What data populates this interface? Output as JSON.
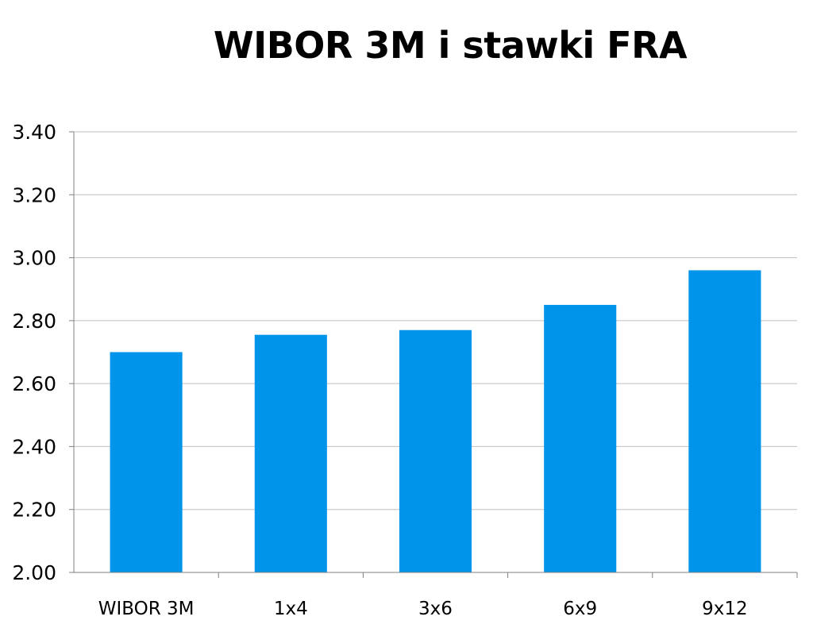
{
  "chart_data": {
    "type": "bar",
    "title": "WIBOR 3M i stawki FRA",
    "xlabel": "",
    "ylabel": "",
    "categories": [
      "WIBOR 3M",
      "1x4",
      "3x6",
      "6x9",
      "9x12"
    ],
    "values": [
      2.7,
      2.755,
      2.77,
      2.85,
      2.96
    ],
    "ylim": [
      2.0,
      3.4
    ],
    "yticks": [
      "2.00",
      "2.20",
      "2.40",
      "2.60",
      "2.80",
      "3.00",
      "3.20",
      "3.40"
    ],
    "grid": true,
    "legend": "none",
    "bar_color": "#0094EB",
    "grid_color": "#BFBFBF",
    "axis_color": "#808080"
  }
}
